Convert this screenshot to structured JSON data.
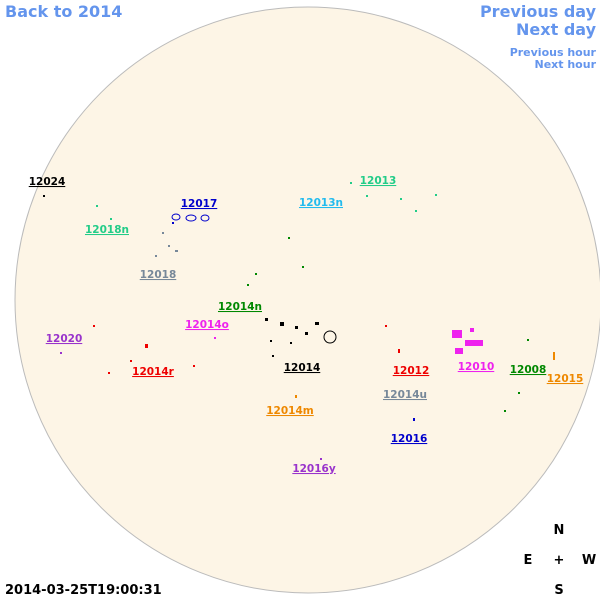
{
  "nav": {
    "back": "Back to 2014",
    "previous_day": "Previous day",
    "next_day": "Next day",
    "previous_hour": "Previous hour",
    "next_hour": "Next hour"
  },
  "timestamp": "2014-03-25T19:00:31",
  "compass": {
    "north": "N",
    "east": "E",
    "center": "+",
    "west": "W",
    "south": "S"
  },
  "regions": [
    {
      "label": "12024",
      "color": "#000000"
    },
    {
      "label": "12017",
      "color": "#0000cc"
    },
    {
      "label": "12013",
      "color": "#22cc88"
    },
    {
      "label": "12013n",
      "color": "#22bbee"
    },
    {
      "label": "12018n",
      "color": "#22cc88"
    },
    {
      "label": "12018",
      "color": "#778899"
    },
    {
      "label": "12014n",
      "color": "#008800"
    },
    {
      "label": "12014o",
      "color": "#ee22ee"
    },
    {
      "label": "12020",
      "color": "#9933cc"
    },
    {
      "label": "12014r",
      "color": "#ee0000"
    },
    {
      "label": "12014",
      "color": "#000000"
    },
    {
      "label": "12012",
      "color": "#ee0000"
    },
    {
      "label": "12010",
      "color": "#ee22ee"
    },
    {
      "label": "12008",
      "color": "#008800"
    },
    {
      "label": "12015",
      "color": "#ee8800"
    },
    {
      "label": "12014u",
      "color": "#778899"
    },
    {
      "label": "12014m",
      "color": "#ee8800"
    },
    {
      "label": "12016",
      "color": "#0000cc"
    },
    {
      "label": "12016y",
      "color": "#9933cc"
    }
  ]
}
